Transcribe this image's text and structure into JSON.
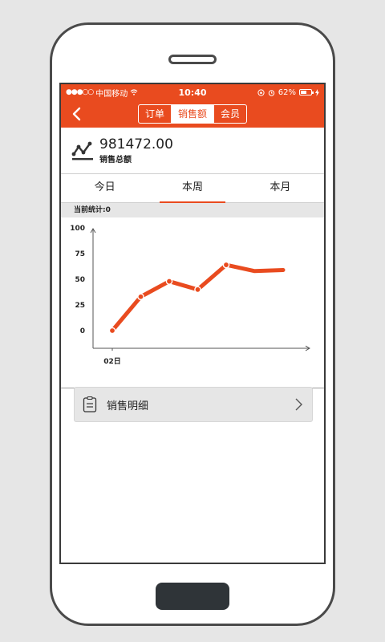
{
  "status": {
    "carrier": "中国移动",
    "time": "10:40",
    "battery": "62%",
    "battery_level": 0.62
  },
  "nav": {
    "tabs": [
      {
        "label": "订单"
      },
      {
        "label": "销售额"
      },
      {
        "label": "会员"
      }
    ],
    "active_index": 1
  },
  "summary": {
    "value": "981472.00",
    "label": "销售总额"
  },
  "periods": {
    "tabs": [
      {
        "label": "今日"
      },
      {
        "label": "本周"
      },
      {
        "label": "本月"
      }
    ],
    "active_index": 1
  },
  "stat": {
    "label": "当前统计:0"
  },
  "chart_data": {
    "type": "line",
    "title": "",
    "xlabel": "",
    "ylabel": "",
    "y_ticks": [
      0,
      25,
      50,
      75,
      100
    ],
    "x_tick_labels": [
      "02日"
    ],
    "ylim": [
      0,
      100
    ],
    "x": [
      0,
      1,
      2,
      3,
      4,
      5,
      6
    ],
    "values": [
      0,
      33,
      48,
      40,
      64,
      58,
      59
    ],
    "markers": [
      true,
      true,
      true,
      true,
      true,
      false,
      false
    ],
    "line_color": "#e94b1f",
    "grid": false
  },
  "detail": {
    "label": "销售明细"
  },
  "colors": {
    "accent": "#e94b1f"
  }
}
